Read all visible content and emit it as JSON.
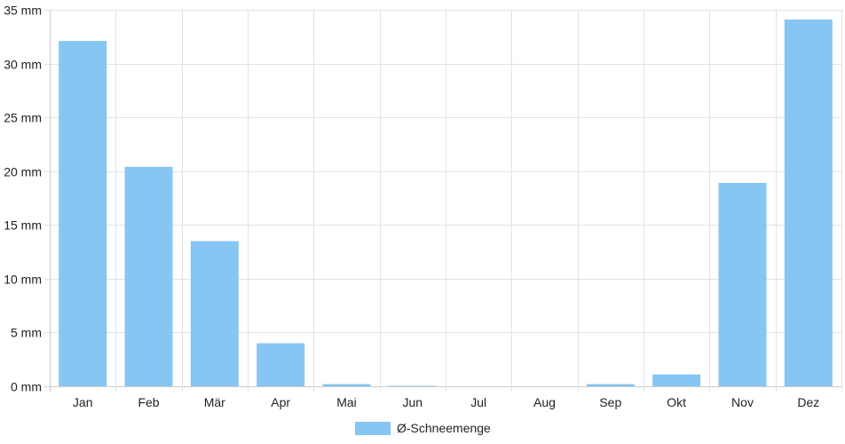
{
  "chart_data": {
    "type": "bar",
    "categories": [
      "Jan",
      "Feb",
      "Mär",
      "Apr",
      "Mai",
      "Jun",
      "Jul",
      "Aug",
      "Sep",
      "Okt",
      "Nov",
      "Dez"
    ],
    "series": [
      {
        "name": "Ø-Schneemenge",
        "values": [
          32.1,
          20.4,
          13.5,
          4.0,
          0.2,
          0.05,
          0,
          0,
          0.2,
          1.1,
          18.9,
          34.1
        ]
      }
    ],
    "y_ticks": [
      "0 mm",
      "5 mm",
      "10 mm",
      "15 mm",
      "20 mm",
      "25 mm",
      "30 mm",
      "35 mm"
    ],
    "ylim": [
      0,
      35
    ],
    "y_unit": "mm",
    "grid": true,
    "legend_position": "bottom",
    "colors": {
      "bar": "#87c5f2",
      "grid": "#e2e2e2",
      "axis": "#cccccc",
      "text": "#222222"
    }
  }
}
